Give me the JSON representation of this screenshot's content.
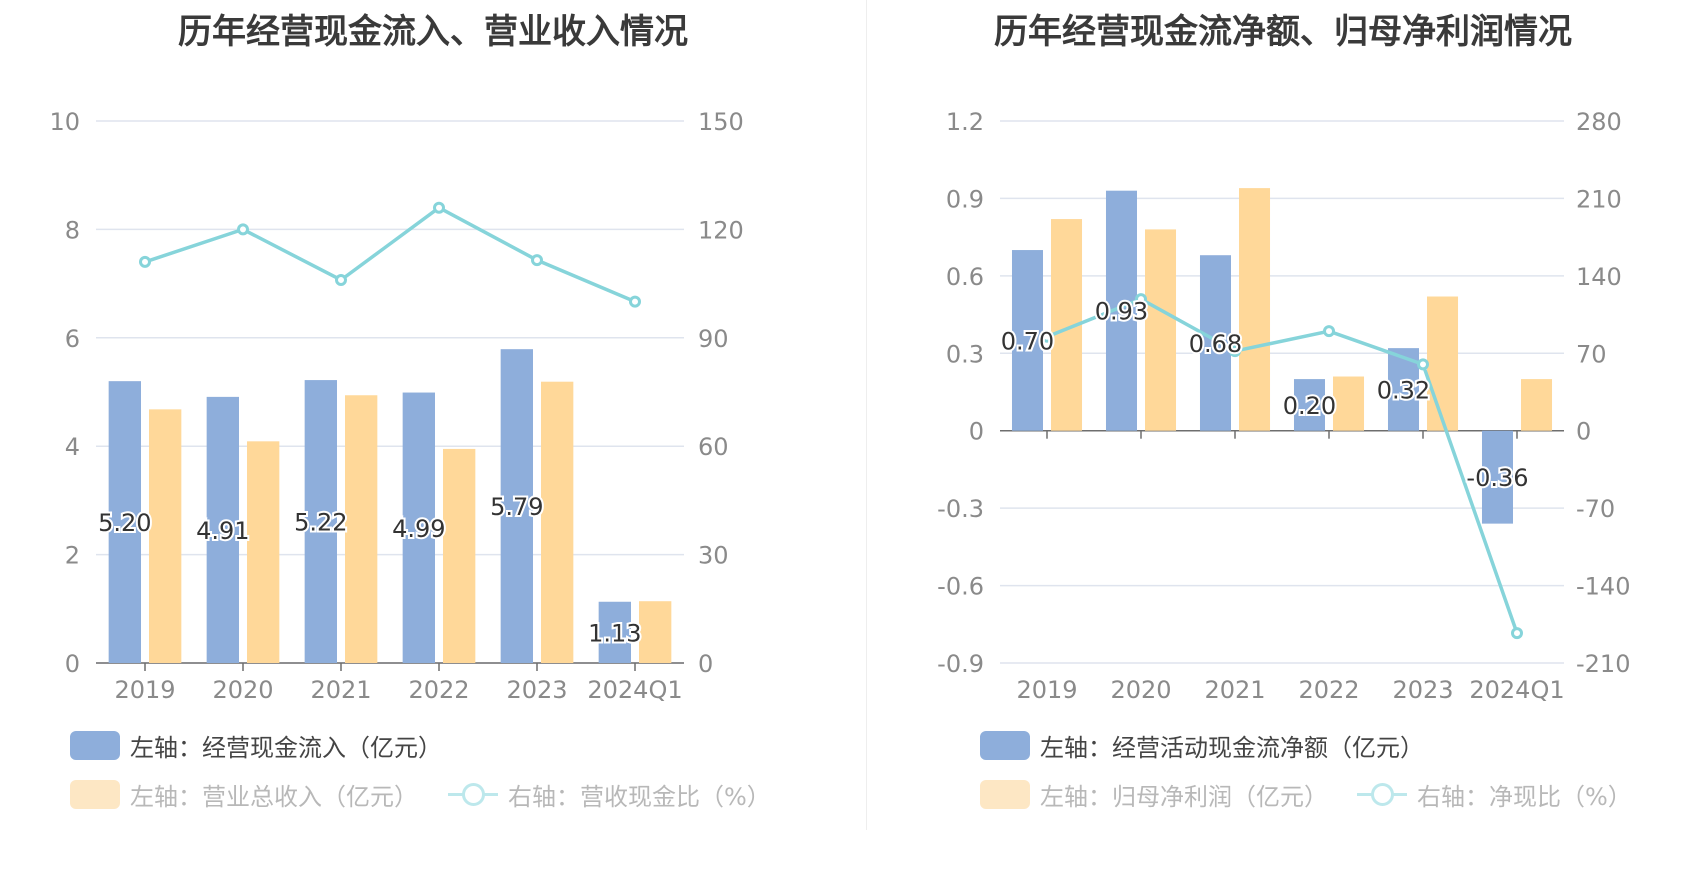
{
  "colors": {
    "blue": "#8eaedb",
    "orange": "#ffd899",
    "line": "#86d4da",
    "grid": "#dfe4ee",
    "axis_text": "#8a8a8a",
    "legend_text": "#444444",
    "legend_text_inactive": "#b8b8b8",
    "swatch_inactive_orange": "#fde7c4",
    "swatch_inactive_line": "#bde8ec"
  },
  "chart_data": [
    {
      "type": "bar",
      "title": "历年经营现金流入、营业收入情况",
      "categories": [
        "2019",
        "2020",
        "2021",
        "2022",
        "2023",
        "2024Q1"
      ],
      "y_left": {
        "ticks": [
          "0",
          "2",
          "4",
          "6",
          "8",
          "10"
        ],
        "min": 0,
        "max": 10
      },
      "y_right": {
        "ticks": [
          "0",
          "30",
          "60",
          "90",
          "120",
          "150"
        ],
        "min": 0,
        "max": 150
      },
      "series": [
        {
          "name": "左轴：经营现金流入（亿元）",
          "kind": "bar",
          "axis": "left",
          "color_key": "blue",
          "values": [
            5.2,
            4.91,
            5.22,
            4.99,
            5.79,
            1.13
          ],
          "labels": [
            "5.20",
            "4.91",
            "5.22",
            "4.99",
            "5.79",
            "1.13"
          ]
        },
        {
          "name": "左轴：营业总收入（亿元）",
          "kind": "bar",
          "axis": "left",
          "color_key": "orange",
          "values": [
            4.68,
            4.09,
            4.94,
            3.95,
            5.19,
            1.14
          ]
        },
        {
          "name": "右轴：营收现金比（%）",
          "kind": "line",
          "axis": "right",
          "color_key": "line",
          "values": [
            111,
            120,
            106,
            126,
            111.5,
            100
          ]
        }
      ],
      "legend": [
        {
          "label": "左轴：经营现金流入（亿元）",
          "swatch": "bar",
          "active": true
        },
        {
          "label": "左轴：营业总收入（亿元）",
          "swatch": "bar",
          "active": false
        },
        {
          "label": "右轴：营收现金比（%）",
          "swatch": "line",
          "active": false
        }
      ]
    },
    {
      "type": "bar",
      "title": "历年经营现金流净额、归母净利润情况",
      "categories": [
        "2019",
        "2020",
        "2021",
        "2022",
        "2023",
        "2024Q1"
      ],
      "y_left": {
        "ticks": [
          "-0.9",
          "-0.6",
          "-0.3",
          "0",
          "0.3",
          "0.6",
          "0.9",
          "1.2"
        ],
        "min": -0.9,
        "max": 1.2
      },
      "y_right": {
        "ticks": [
          "-210",
          "-140",
          "-70",
          "0",
          "70",
          "140",
          "210",
          "280"
        ],
        "min": -210,
        "max": 280
      },
      "series": [
        {
          "name": "左轴：经营活动现金流净额（亿元）",
          "kind": "bar",
          "axis": "left",
          "color_key": "blue",
          "values": [
            0.7,
            0.93,
            0.68,
            0.2,
            0.32,
            -0.36
          ],
          "labels": [
            "0.70",
            "0.93",
            "0.68",
            "0.20",
            "0.32",
            "-0.36"
          ]
        },
        {
          "name": "左轴：归母净利润（亿元）",
          "kind": "bar",
          "axis": "left",
          "color_key": "orange",
          "values": [
            0.82,
            0.78,
            0.94,
            0.21,
            0.52,
            0.2
          ]
        },
        {
          "name": "右轴：净现比（%）",
          "kind": "line",
          "axis": "right",
          "color_key": "line",
          "values": [
            85,
            119,
            72,
            90,
            60,
            -183
          ]
        }
      ],
      "legend": [
        {
          "label": "左轴：经营活动现金流净额（亿元）",
          "swatch": "bar",
          "active": true
        },
        {
          "label": "左轴：归母净利润（亿元）",
          "swatch": "bar",
          "active": false
        },
        {
          "label": "右轴：净现比（%）",
          "swatch": "line",
          "active": false
        }
      ]
    }
  ]
}
